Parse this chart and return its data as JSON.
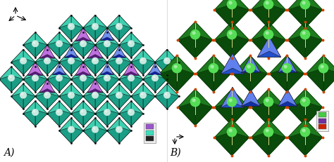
{
  "figure_width": 4.74,
  "figure_height": 2.31,
  "dpi": 100,
  "background_color": "#ffffff",
  "panel_A": {
    "label": "A)",
    "label_fontsize": 10,
    "teal": "#3ECFB0",
    "teal_dark": "#1A9E85",
    "teal_light": "#7EEACD",
    "purple": "#8B3EB5",
    "purple_dark": "#5A1A80",
    "purple_light": "#C070E0",
    "blue": "#3040CC",
    "blue_dark": "#1020AA",
    "blue_light": "#7090EE",
    "node_color": "#111111",
    "sphere_color": "#C8E8E0",
    "sphere_edge": "#90C0B8",
    "leg_purple": "#9955CC",
    "leg_teal": "#40DDBB",
    "leg_black": "#222222"
  },
  "panel_B": {
    "label": "B)",
    "label_fontsize": 10,
    "dgreen": "#1E7A1E",
    "dgreen_dark": "#0A4A0A",
    "dgreen_light": "#3AB03A",
    "bgreen": "#44DD44",
    "purple": "#7030A0",
    "blue": "#2050CC",
    "blue_light": "#6080EE",
    "orange": "#CC4400",
    "sphere_color": "#55DD55",
    "wire_color": "#DDDD88",
    "leg_green": "#44CC44",
    "leg_purple": "#7030A0",
    "leg_red": "#CC2200"
  }
}
